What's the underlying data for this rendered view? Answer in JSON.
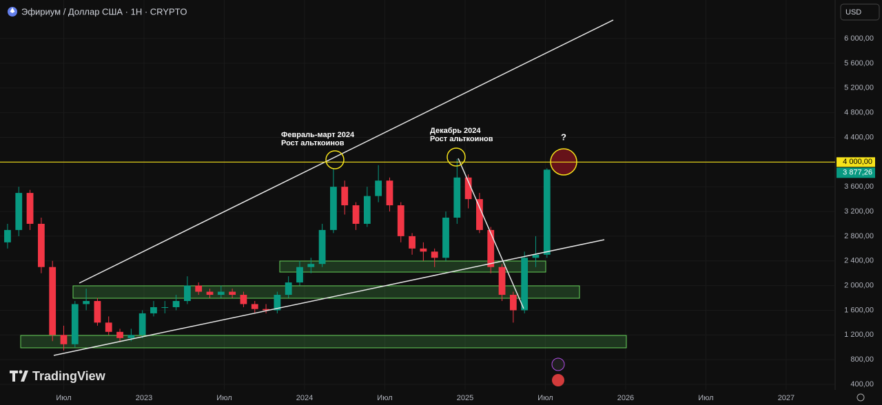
{
  "header": {
    "title": "Эфириум / Доллар США · 1Н · CRYPTO",
    "currency": "USD"
  },
  "chart_data": {
    "type": "candlestick",
    "x": [
      2022.15,
      2022.22,
      2022.29,
      2022.36,
      2022.43,
      2022.5,
      2022.57,
      2022.64,
      2022.71,
      2022.78,
      2022.85,
      2022.92,
      2022.99,
      2023.06,
      2023.13,
      2023.2,
      2023.27,
      2023.34,
      2023.41,
      2023.48,
      2023.55,
      2023.62,
      2023.69,
      2023.76,
      2023.83,
      2023.9,
      2023.97,
      2024.04,
      2024.11,
      2024.18,
      2024.25,
      2024.32,
      2024.39,
      2024.46,
      2024.53,
      2024.6,
      2024.67,
      2024.74,
      2024.81,
      2024.88,
      2024.95,
      2025.02,
      2025.09,
      2025.16,
      2025.23,
      2025.3,
      2025.37,
      2025.44,
      2025.51
    ],
    "open": [
      2700,
      2900,
      3500,
      3000,
      2300,
      1200,
      1050,
      1700,
      1750,
      1400,
      1250,
      1150,
      1200,
      1550,
      1650,
      1650,
      1750,
      2000,
      1900,
      1850,
      1900,
      1850,
      1700,
      1620,
      1600,
      1850,
      2050,
      2300,
      2350,
      2900,
      3600,
      3300,
      3000,
      3450,
      3700,
      3300,
      2800,
      2600,
      2550,
      2450,
      3100,
      3750,
      3400,
      2900,
      2300,
      1850,
      1600,
      2450,
      2500
    ],
    "high": [
      3000,
      3600,
      3550,
      3100,
      2400,
      1350,
      1750,
      1950,
      1800,
      1500,
      1300,
      1300,
      1600,
      1750,
      1750,
      1850,
      2150,
      2050,
      1950,
      2000,
      1950,
      1900,
      1750,
      1700,
      1900,
      2150,
      2400,
      2450,
      3000,
      3900,
      3700,
      3350,
      3600,
      3950,
      3750,
      3350,
      2850,
      2700,
      2600,
      3200,
      4050,
      3800,
      3500,
      2950,
      2350,
      1900,
      2550,
      2800,
      3900
    ],
    "low": [
      2600,
      2800,
      2900,
      2200,
      1100,
      950,
      1000,
      1600,
      1350,
      1200,
      1100,
      1100,
      1150,
      1500,
      1550,
      1600,
      1700,
      1850,
      1800,
      1800,
      1800,
      1650,
      1550,
      1550,
      1550,
      1800,
      2000,
      2200,
      2300,
      2850,
      3150,
      2900,
      2950,
      3350,
      3200,
      2700,
      2500,
      2400,
      2300,
      2400,
      3000,
      3250,
      2850,
      2200,
      1750,
      1400,
      1550,
      2300,
      2450
    ],
    "close": [
      2900,
      3500,
      3000,
      2300,
      1200,
      1050,
      1700,
      1750,
      1400,
      1250,
      1150,
      1200,
      1550,
      1650,
      1650,
      1750,
      2000,
      1900,
      1850,
      1900,
      1850,
      1700,
      1620,
      1600,
      1850,
      2050,
      2300,
      2350,
      2900,
      3600,
      3300,
      3000,
      3450,
      3700,
      3300,
      2800,
      2600,
      2550,
      2450,
      3100,
      3750,
      3400,
      2900,
      2300,
      1850,
      1600,
      2450,
      2500,
      3877.26
    ],
    "last_label": "3 877,26",
    "up_color": "#089981",
    "down_color": "#f23645",
    "hline": {
      "value": 4000,
      "label": "4 000,00",
      "color": "#f5e21b"
    },
    "xlim": [
      2022.103,
      2027.305
    ],
    "ylim": [
      311,
      6625
    ],
    "xticks": [
      {
        "value": 2022.5,
        "label": "Июл"
      },
      2023,
      {
        "value": 2023.5,
        "label": "Июл"
      },
      2024,
      {
        "value": 2024.5,
        "label": "Июл"
      },
      2025,
      {
        "value": 2025.5,
        "label": "Июл"
      },
      2026,
      {
        "value": 2026.5,
        "label": "Июл"
      },
      2027
    ],
    "yticks": [
      {
        "value": 400,
        "label": "400,00"
      },
      {
        "value": 800,
        "label": "800,00"
      },
      {
        "value": 1200,
        "label": "1 200,00"
      },
      {
        "value": 1600,
        "label": "1 600,00"
      },
      {
        "value": 2000,
        "label": "2 000,00"
      },
      {
        "value": 2400,
        "label": "2 400,00"
      },
      {
        "value": 2800,
        "label": "2 800,00"
      },
      {
        "value": 3200,
        "label": "3 200,00"
      },
      {
        "value": 3600,
        "label": "3 600,00"
      },
      {
        "value": 4000,
        "label": "4 000,00"
      },
      {
        "value": 4400,
        "label": "4 400,00"
      },
      {
        "value": 4800,
        "label": "4 800,00"
      },
      {
        "value": 5200,
        "label": "5 200,00"
      },
      {
        "value": 5600,
        "label": "5 600,00"
      },
      {
        "value": 6000,
        "label": "6 000,00"
      }
    ],
    "annotations": {
      "first": [
        "Февраль-март 2024",
        "Рост альткоинов"
      ],
      "second": [
        "Декабрь 2024",
        "Рост альткоинов"
      ],
      "question": "?"
    },
    "watermark": "TradingView"
  }
}
